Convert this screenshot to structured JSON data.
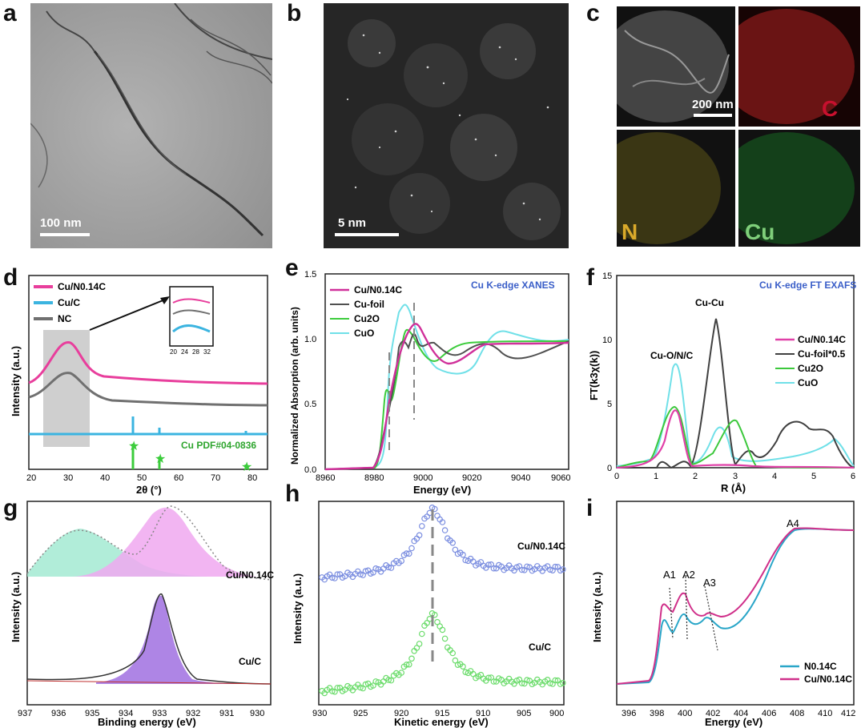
{
  "panel_labels": [
    "a",
    "b",
    "c",
    "d",
    "e",
    "f",
    "g",
    "h",
    "i"
  ],
  "panel_a": {
    "scale_bar": "100 nm"
  },
  "panel_b": {
    "scale_bar": "5 nm"
  },
  "panel_c": {
    "scale_bar": "200 nm",
    "elements": [
      "C",
      "N",
      "Cu"
    ],
    "colors": {
      "C": "#c8102e",
      "N": "#d9c43a",
      "Cu": "#3ec43a"
    }
  },
  "chart_data": [
    {
      "panel": "d",
      "type": "line",
      "xlabel": "2θ (°)",
      "ylabel": "Intensity (a.u.)",
      "xlim": [
        15,
        80
      ],
      "xticks": [
        "20",
        "30",
        "40",
        "50",
        "60",
        "70",
        "80"
      ],
      "legend": [
        "Cu/N0.14C",
        "Cu/C",
        "NC"
      ],
      "legend_colors": [
        "#e83e9c",
        "#3bb4e0",
        "#707070"
      ],
      "annotation": "Cu PDF#04-0836",
      "inset_ticks": [
        "20",
        "24",
        "28",
        "32"
      ],
      "ref_peaks_2theta": [
        43.3,
        50.4,
        74.1
      ]
    },
    {
      "panel": "e",
      "type": "line",
      "title": "Cu K-edge XANES",
      "xlabel": "Energy (eV)",
      "ylabel": "Normalized Absorption (arb. units)",
      "xlim": [
        8960,
        9060
      ],
      "ylim": [
        0.0,
        1.5
      ],
      "xticks": [
        "8960",
        "8980",
        "9000",
        "9020",
        "9040",
        "9060"
      ],
      "yticks": [
        "0.0",
        "0.5",
        "1.0",
        "1.5"
      ],
      "legend": [
        "Cu/N0.14C",
        "Cu-foil",
        "Cu2O",
        "CuO"
      ],
      "legend_colors": [
        "#d0309a",
        "#505050",
        "#3ccc3c",
        "#70e0e8"
      ]
    },
    {
      "panel": "f",
      "type": "line",
      "title": "Cu K-edge FT EXAFS",
      "xlabel": "R (Å)",
      "ylabel": "FT(k3χ(k))",
      "xlim": [
        0,
        6
      ],
      "ylim": [
        0,
        15
      ],
      "xticks": [
        "0",
        "1",
        "2",
        "3",
        "4",
        "5",
        "6"
      ],
      "yticks": [
        "0",
        "5",
        "10",
        "15"
      ],
      "annotations": [
        "Cu-Cu",
        "Cu-O/N/C"
      ],
      "legend": [
        "Cu/N0.14C",
        "Cu-foil*0.5",
        "Cu2O",
        "CuO"
      ],
      "legend_colors": [
        "#e040a8",
        "#404040",
        "#3cc83c",
        "#70e0e8"
      ]
    },
    {
      "panel": "g",
      "type": "line",
      "xlabel": "Binding energy (eV)",
      "ylabel": "Intensity (a.u.)",
      "xlim": [
        937,
        930
      ],
      "xticks": [
        "937",
        "936",
        "935",
        "934",
        "933",
        "932",
        "931",
        "930"
      ],
      "series_labels": [
        "Cu/N0.14C",
        "Cu/C"
      ]
    },
    {
      "panel": "h",
      "type": "scatter",
      "xlabel": "Kinetic energy (eV)",
      "ylabel": "Intensity (a.u.)",
      "xlim": [
        930,
        900
      ],
      "xticks": [
        "930",
        "925",
        "920",
        "915",
        "910",
        "905",
        "900"
      ],
      "series_labels": [
        "Cu/N0.14C",
        "Cu/C"
      ]
    },
    {
      "panel": "i",
      "type": "line",
      "xlabel": "Energy (eV)",
      "ylabel": "Intensity (a.u.)",
      "xlim": [
        395,
        412
      ],
      "xticks": [
        "396",
        "398",
        "400",
        "402",
        "404",
        "406",
        "408",
        "410",
        "412"
      ],
      "annotations": [
        "A1",
        "A2",
        "A3",
        "A4"
      ],
      "legend": [
        "N0.14C",
        "Cu/N0.14C"
      ],
      "legend_colors": [
        "#2aa6c8",
        "#d0308a"
      ]
    }
  ]
}
